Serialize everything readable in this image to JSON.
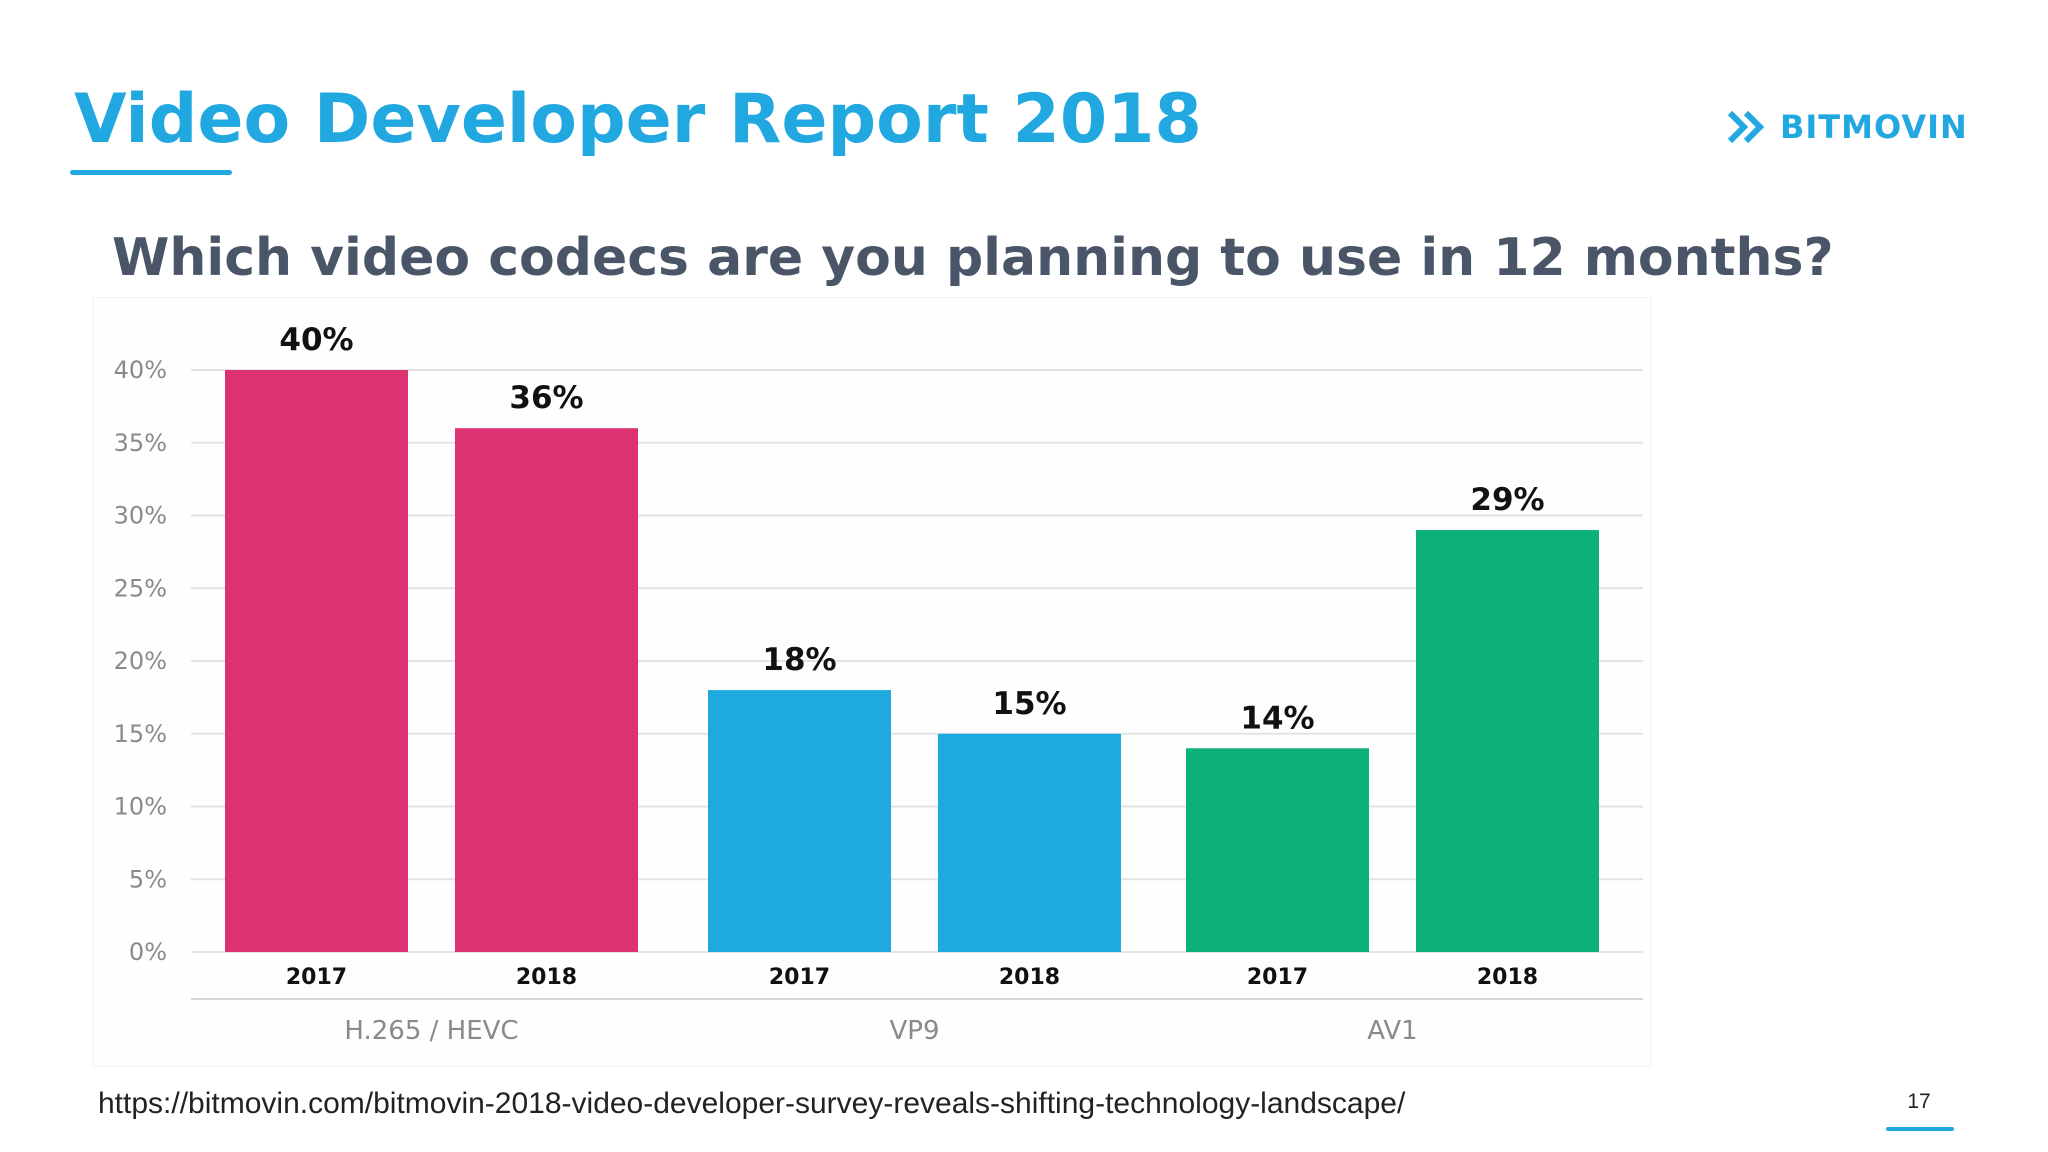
{
  "title": "Video Developer Report 2018",
  "subtitle": "Which video codecs are you planning to use in 12 months?",
  "logo": {
    "text": "BITMOVIN",
    "icon": "double-chevron-right-icon"
  },
  "source_url": "https://bitmovin.com/bitmovin-2018-video-developer-survey-reveals-shifting-technology-landscape/",
  "page_number": "17",
  "colors": {
    "accent": "#22a8e0",
    "text": "#4a5568",
    "grid": "#e3e3e3",
    "tick": "#8a8a8a",
    "label": "#111111"
  },
  "chart_data": {
    "type": "bar",
    "title": "",
    "xlabel": "",
    "ylabel": "",
    "ylim": [
      0,
      40
    ],
    "yticks": [
      0,
      5,
      10,
      15,
      20,
      25,
      30,
      35,
      40
    ],
    "ytick_labels": [
      "0%",
      "5%",
      "10%",
      "15%",
      "20%",
      "25%",
      "30%",
      "35%",
      "40%"
    ],
    "grid": true,
    "legend": "none",
    "groups": [
      {
        "name": "H.265 / HEVC",
        "color": "#dd3171",
        "bars": [
          {
            "category": "2017",
            "value": 40,
            "label": "40%"
          },
          {
            "category": "2018",
            "value": 36,
            "label": "36%"
          }
        ]
      },
      {
        "name": "VP9",
        "color": "#1fa9e1",
        "bars": [
          {
            "category": "2017",
            "value": 18,
            "label": "18%"
          },
          {
            "category": "2018",
            "value": 15,
            "label": "15%"
          }
        ]
      },
      {
        "name": "AV1",
        "color": "#0bb07b",
        "bars": [
          {
            "category": "2017",
            "value": 14,
            "label": "14%"
          },
          {
            "category": "2018",
            "value": 29,
            "label": "29%"
          }
        ]
      }
    ]
  }
}
